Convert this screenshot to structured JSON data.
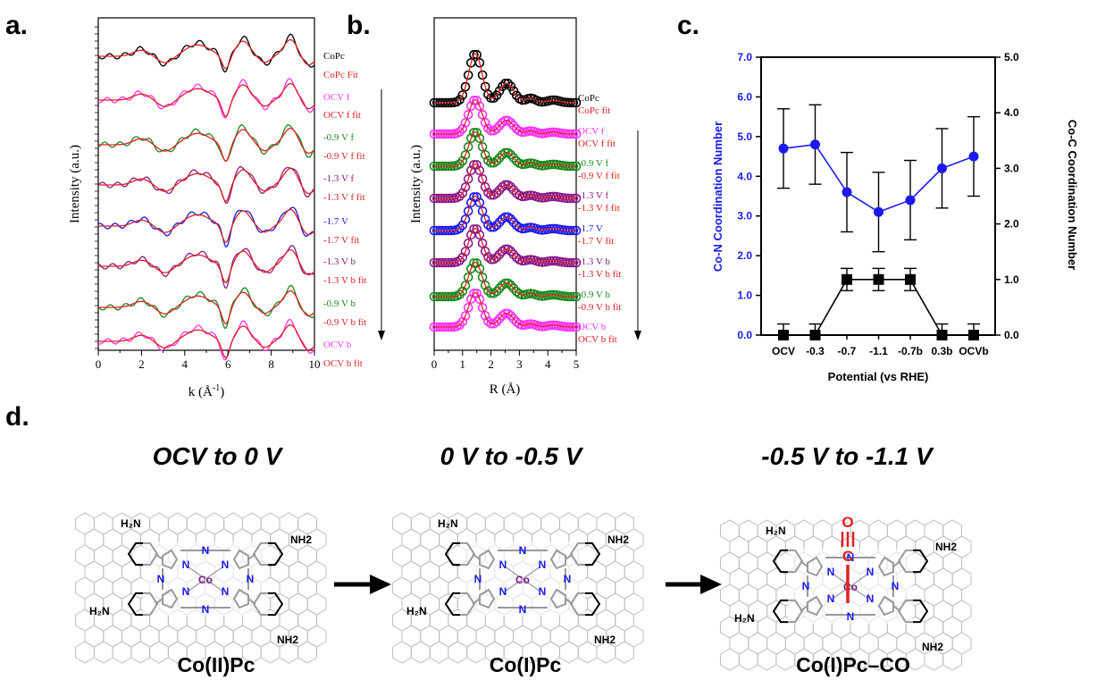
{
  "panels": {
    "a": "a.",
    "b": "b.",
    "c": "c.",
    "d": "d."
  },
  "panel_a": {
    "ylabel": "Intensity (a.u.)",
    "xlabel": "k (Å",
    "xlabel_sup": "-1",
    "xlabel_end": ")",
    "xticks": [
      "0",
      "2",
      "4",
      "6",
      "8",
      "10"
    ],
    "legend": [
      {
        "label": "CoPc",
        "color": "#000000"
      },
      {
        "label": "CoPc Fit",
        "color": "#e02020"
      },
      {
        "label": "OCV f",
        "color": "#ff30ff"
      },
      {
        "label": "OCV f fit",
        "color": "#e02020"
      },
      {
        "label": "-0.9 V f",
        "color": "#1a8a1a"
      },
      {
        "label": "-0.9 V f fit",
        "color": "#e02020"
      },
      {
        "label": "-1.3 V f",
        "color": "#8a1a8a"
      },
      {
        "label": "-1.3 V f fit",
        "color": "#e02020"
      },
      {
        "label": "-1.7 V",
        "color": "#1a1aee"
      },
      {
        "label": "-1.7 V fit",
        "color": "#e02020"
      },
      {
        "label": "-1.3 V b",
        "color": "#8a1a8a"
      },
      {
        "label": "-1.3 V b fit",
        "color": "#e02020"
      },
      {
        "label": "-0.9 V b",
        "color": "#1a8a1a"
      },
      {
        "label": "-0.9 V b fit",
        "color": "#e02020"
      },
      {
        "label": "OCV b",
        "color": "#ff30ff"
      },
      {
        "label": "OCV b fit",
        "color": "#e02020"
      }
    ]
  },
  "panel_b": {
    "ylabel": "Intensity (a.u.)",
    "xlabel": "R (Å)",
    "xticks": [
      "0",
      "1",
      "2",
      "3",
      "4",
      "5"
    ],
    "legend": [
      {
        "label": "CoPc",
        "color": "#000000"
      },
      {
        "label": "CoPc fit",
        "color": "#e02020"
      },
      {
        "label": "OCV f",
        "color": "#ff30ff"
      },
      {
        "label": "OCV f fit",
        "color": "#e02020"
      },
      {
        "label": "-0.9 V f",
        "color": "#1a8a1a"
      },
      {
        "label": "-0.9 V f fit",
        "color": "#e02020"
      },
      {
        "label": "-1.3 V f",
        "color": "#8a1a8a"
      },
      {
        "label": "-1.3 V f fit",
        "color": "#e02020"
      },
      {
        "label": "-1.7 V",
        "color": "#1a1aee"
      },
      {
        "label": "-1.7 V fit",
        "color": "#e02020"
      },
      {
        "label": "-1.3 V b",
        "color": "#8a1a8a"
      },
      {
        "label": "-1.3 V b fit",
        "color": "#e02020"
      },
      {
        "label": "-0.9 V b",
        "color": "#1a8a1a"
      },
      {
        "label": "-0.9 V b fit",
        "color": "#e02020"
      },
      {
        "label": "OCV b",
        "color": "#ff30ff"
      },
      {
        "label": "OCV b fit",
        "color": "#e02020"
      }
    ]
  },
  "chart_data": {
    "type": "line",
    "title": "",
    "xlabel": "Potential (vs RHE)",
    "ylabel": "Co-N Coordination Number",
    "y2label": "Co-C Coordination Number",
    "categories": [
      "OCV",
      "-0.3",
      "-0.7",
      "-1.1",
      "-0.7b",
      "0.3b",
      "OCVb"
    ],
    "ylim": [
      0,
      7
    ],
    "y2lim": [
      0,
      5
    ],
    "yticks": [
      "0.0",
      "1.0",
      "2.0",
      "3.0",
      "4.0",
      "5.0",
      "6.0",
      "7.0"
    ],
    "y2ticks": [
      "0.0",
      "1.0",
      "2.0",
      "3.0",
      "4.0",
      "5.0"
    ],
    "series": [
      {
        "axis": "left",
        "color": "#1a1aee",
        "marker": "circle",
        "values": [
          4.7,
          4.8,
          3.6,
          3.1,
          3.4,
          4.2,
          4.5
        ],
        "errors": [
          1.0,
          1.0,
          1.0,
          1.0,
          1.0,
          1.0,
          1.0
        ]
      },
      {
        "axis": "right",
        "color": "#000000",
        "marker": "square",
        "values": [
          0,
          0,
          1,
          1,
          1,
          0,
          0
        ],
        "errors": [
          0.2,
          0.2,
          0.2,
          0.2,
          0.2,
          0.2,
          0.2
        ]
      }
    ]
  },
  "panel_d": {
    "stages": [
      "OCV to 0 V",
      "0 V to -0.5 V",
      "-0.5 V to -1.1 V"
    ],
    "names": [
      "Co(II)Pc",
      "Co(I)Pc",
      "Co(I)Pc–CO"
    ],
    "atoms": {
      "co": "Co",
      "n": "N",
      "h2n": "H₂N",
      "nh2": "NH2",
      "o": "O",
      "c": "C"
    }
  }
}
